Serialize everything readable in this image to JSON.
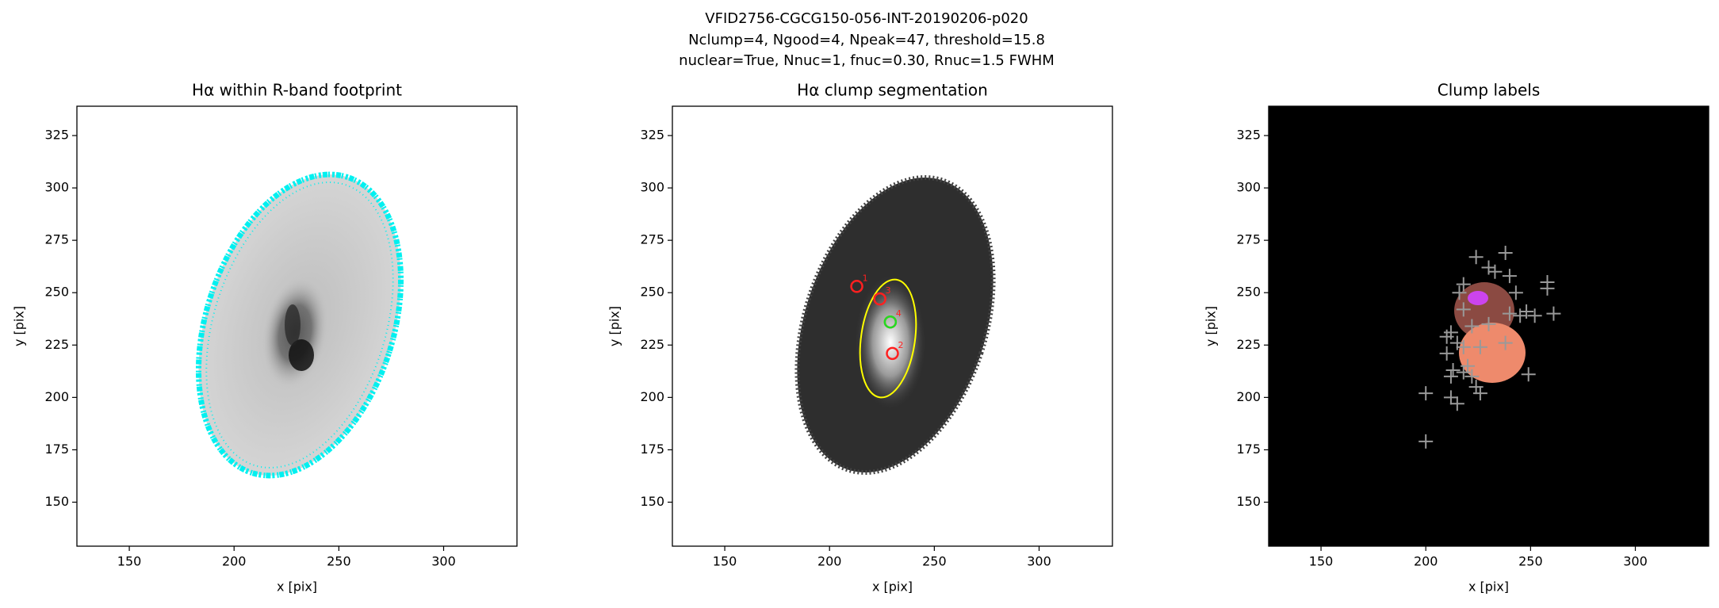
{
  "suptitle": [
    "VFID2756-CGCG150-056-INT-20190206-p020",
    "Nclump=4, Ngood=4, Npeak=47, threshold=15.8",
    "nuclear=True, Nnuc=1, fnuc=0.30, Rnuc=1.5 FWHM"
  ],
  "chart_data": [
    {
      "type": "image",
      "title": "Hα within R-band footprint",
      "xlabel": "x [pix]",
      "ylabel": "y [pix]",
      "xlim": [
        125,
        335
      ],
      "ylim": [
        129,
        339
      ],
      "xticks": [
        150,
        200,
        250,
        300
      ],
      "yticks": [
        150,
        175,
        200,
        225,
        250,
        275,
        300,
        325
      ]
    },
    {
      "type": "image",
      "title": "Hα clump segmentation",
      "xlabel": "x [pix]",
      "ylabel": "y [pix]",
      "xlim": [
        125,
        335
      ],
      "ylim": [
        129,
        339
      ],
      "xticks": [
        150,
        200,
        250,
        300
      ],
      "yticks": [
        150,
        175,
        200,
        225,
        250,
        275,
        300,
        325
      ],
      "series": [
        {
          "color": "#ff2020",
          "x": [
            213,
            224,
            229,
            230
          ],
          "values": [
            253,
            247,
            236,
            221
          ],
          "labels": [
            "1",
            "3",
            "4",
            "2"
          ]
        },
        {
          "color": "#22dd22",
          "x": [
            229
          ],
          "values": [
            236
          ]
        }
      ]
    },
    {
      "type": "image",
      "title": "Clump labels",
      "xlabel": "x [pix]",
      "ylabel": "y [pix]",
      "xlim": [
        125,
        335
      ],
      "ylim": [
        129,
        339
      ],
      "xticks": [
        150,
        200,
        250,
        300
      ],
      "yticks": [
        150,
        175,
        200,
        225,
        250,
        275,
        300,
        325
      ],
      "series": [
        {
          "color": "#999999",
          "x": [
            200,
            200,
            212,
            215,
            212,
            213,
            218,
            210,
            210,
            212,
            215,
            218,
            220,
            222,
            224,
            226,
            218,
            216,
            218,
            224,
            230,
            233,
            238,
            240,
            243,
            240,
            245,
            248,
            252,
            258,
            258,
            261,
            249,
            238,
            226,
            222,
            230
          ],
          "values": [
            179,
            202,
            200,
            197,
            210,
            213,
            212,
            221,
            229,
            231,
            226,
            224,
            215,
            210,
            205,
            202,
            242,
            250,
            254,
            267,
            262,
            260,
            269,
            258,
            250,
            240,
            239,
            241,
            239,
            255,
            252,
            240,
            211,
            226,
            224,
            234,
            235
          ]
        }
      ]
    }
  ]
}
